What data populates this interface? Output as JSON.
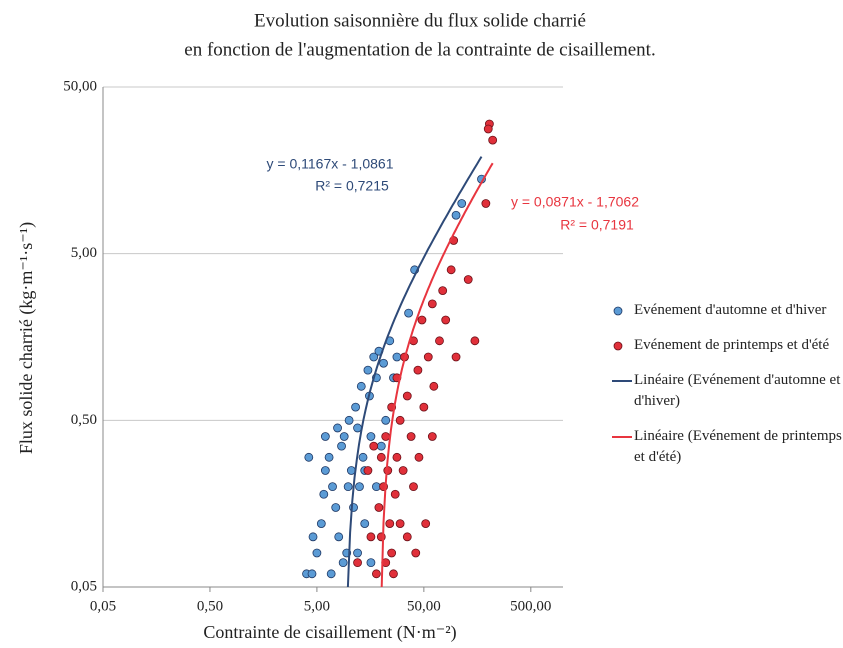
{
  "chart_data": {
    "type": "scatter",
    "title": [
      "Evolution saisonnière du flux solide charrié",
      "en fonction de l'augmentation de la contrainte de cisaillement."
    ],
    "x_label": "Contrainte de cisaillement (N·m⁻²)",
    "y_label": "Flux solide charrié (kg·m⁻¹·s⁻¹)",
    "xlog": true,
    "ylog": true,
    "grid": true,
    "legend": "right",
    "xlim": [
      0.05,
      1000
    ],
    "ylim": [
      0.05,
      50
    ],
    "xticks": [
      {
        "value": 0.05,
        "label": "0,05"
      },
      {
        "value": 0.5,
        "label": "0,50"
      },
      {
        "value": 5,
        "label": "5,00"
      },
      {
        "value": 50,
        "label": "50,00"
      },
      {
        "value": 500,
        "label": "500,00"
      }
    ],
    "yticks": [
      {
        "value": 0.05,
        "label": "0,05"
      },
      {
        "value": 0.5,
        "label": "0,50"
      },
      {
        "value": 5,
        "label": "5,00"
      },
      {
        "value": 50,
        "label": "50,00"
      }
    ],
    "series": [
      {
        "name": "Evénement d'automne et d'hiver",
        "color": "#5b9bd5",
        "edge": "#1f3864",
        "x": [
          4,
          4.5,
          5,
          4.6,
          4.2,
          5.5,
          6,
          6.5,
          7,
          7.5,
          8,
          8.5,
          9,
          9.5,
          10,
          10.5,
          11,
          11.5,
          12,
          12.5,
          13,
          13.5,
          14,
          15,
          15.5,
          16,
          17,
          18,
          19,
          20,
          21,
          22,
          24,
          26,
          28,
          36,
          41,
          100,
          113,
          173,
          5.8,
          6.8,
          7.8,
          8.8,
          9.8,
          12,
          14,
          16,
          18,
          6
        ],
        "y": [
          0.06,
          0.06,
          0.08,
          0.1,
          0.3,
          0.12,
          0.25,
          0.3,
          0.2,
          0.15,
          0.1,
          0.35,
          0.4,
          0.08,
          0.5,
          0.25,
          0.15,
          0.6,
          0.45,
          0.2,
          0.8,
          0.3,
          0.12,
          1.0,
          0.7,
          0.4,
          1.2,
          0.9,
          1.3,
          0.35,
          1.1,
          0.5,
          1.5,
          0.9,
          1.2,
          2.2,
          4,
          8.5,
          10,
          14,
          0.18,
          0.06,
          0.45,
          0.07,
          0.2,
          0.08,
          0.25,
          0.07,
          0.2,
          0.4
        ]
      },
      {
        "name": "Evénement de printemps et d'été",
        "color": "#e0303a",
        "edge": "#6b1018",
        "x": [
          18,
          19,
          20,
          20,
          21,
          22,
          22,
          23,
          24,
          25,
          25,
          27,
          28,
          28,
          30,
          30,
          32,
          33,
          35,
          35,
          38,
          40,
          40,
          42,
          44,
          45,
          48,
          50,
          55,
          60,
          62,
          70,
          75,
          80,
          90,
          100,
          130,
          150,
          95,
          190,
          205,
          200,
          220,
          15,
          16,
          17,
          12,
          26,
          52,
          60
        ],
        "y": [
          0.06,
          0.15,
          0.3,
          0.1,
          0.2,
          0.07,
          0.4,
          0.25,
          0.12,
          0.08,
          0.6,
          0.18,
          0.3,
          0.9,
          0.12,
          0.5,
          0.25,
          1.2,
          0.1,
          0.7,
          0.4,
          1.5,
          0.2,
          0.08,
          1.0,
          0.3,
          2,
          0.6,
          1.2,
          2.5,
          0.8,
          1.5,
          3,
          2,
          4,
          1.2,
          3.5,
          1.5,
          6,
          10,
          30,
          28,
          24,
          0.25,
          0.1,
          0.35,
          0.07,
          0.06,
          0.12,
          0.4
        ]
      }
    ],
    "trendlines": [
      {
        "name": "Linéaire (Evénement d'automne et d'hiver)",
        "color": "#2e4a78",
        "slope": 0.1167,
        "intercept": -1.0861,
        "equation": "y = 0,1167x - 1,0861",
        "r2": "R² = 0,7215"
      },
      {
        "name": "Linéaire (Evénement de printemps et d'été)",
        "color": "#e8353f",
        "slope": 0.0871,
        "intercept": -1.7062,
        "equation": "y = 0,0871x - 1,7062",
        "r2": "R² = 0,7191"
      }
    ]
  }
}
